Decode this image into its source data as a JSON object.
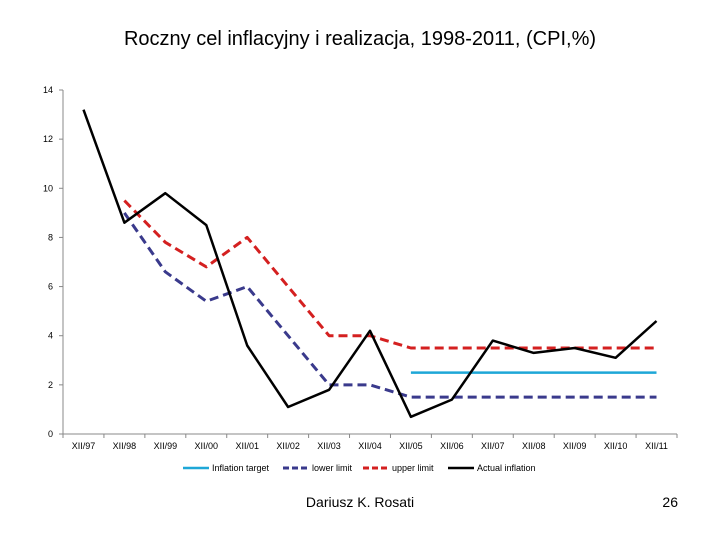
{
  "chart_data": {
    "type": "line",
    "title": "Roczny cel inflacyjny i realizacja, 1998-2011, (CPI,%)",
    "xlabel": "",
    "ylabel": "",
    "ylim": [
      0,
      14
    ],
    "yticks": [
      0,
      2,
      4,
      6,
      8,
      10,
      12,
      14
    ],
    "categories": [
      "XII/97",
      "XII/98",
      "XII/99",
      "XII/00",
      "XII/01",
      "XII/02",
      "XII/03",
      "XII/04",
      "XII/05",
      "XII/06",
      "XII/07",
      "XII/08",
      "XII/09",
      "XII/10",
      "XII/11"
    ],
    "grid": false,
    "legend_position": "bottom",
    "series": [
      {
        "name": "Inflation target",
        "color": "#1ea7d7",
        "style": "solid",
        "values": [
          null,
          null,
          null,
          null,
          null,
          null,
          null,
          null,
          2.5,
          2.5,
          2.5,
          2.5,
          2.5,
          2.5,
          2.5
        ]
      },
      {
        "name": "lower limit",
        "color": "#3a3a8c",
        "style": "dashed",
        "values": [
          null,
          9.0,
          6.6,
          5.4,
          6.0,
          4.0,
          2.0,
          2.0,
          1.5,
          1.5,
          1.5,
          1.5,
          1.5,
          1.5,
          1.5
        ]
      },
      {
        "name": "upper limit",
        "color": "#d42020",
        "style": "dashed",
        "values": [
          null,
          9.5,
          7.8,
          6.8,
          8.0,
          6.0,
          4.0,
          4.0,
          3.5,
          3.5,
          3.5,
          3.5,
          3.5,
          3.5,
          3.5
        ]
      },
      {
        "name": "Actual inflation",
        "color": "#000000",
        "style": "solid",
        "values": [
          13.2,
          8.6,
          9.8,
          8.5,
          3.6,
          1.1,
          1.8,
          4.2,
          0.7,
          1.4,
          3.8,
          3.3,
          3.5,
          3.1,
          4.6
        ]
      }
    ]
  },
  "footer": {
    "author": "Dariusz K. Rosati",
    "slide_number": "26"
  }
}
